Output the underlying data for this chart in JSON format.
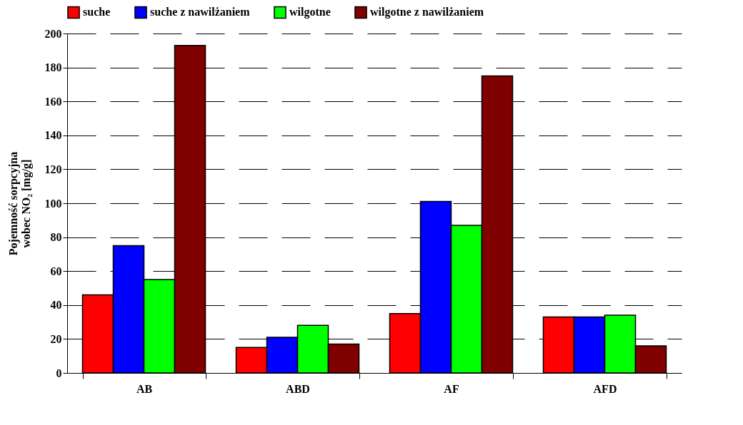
{
  "chart_data": {
    "type": "bar",
    "ylabel": "Pojemność sorpcyjna\nwobec NO₂ [mg/g]",
    "categories": [
      "AB",
      "ABD",
      "AF",
      "AFD"
    ],
    "series": [
      {
        "name": "suche",
        "color": "#ff0000",
        "values": [
          46,
          15,
          35,
          33
        ]
      },
      {
        "name": "suche z nawilżaniem",
        "color": "#0000ff",
        "values": [
          75,
          21,
          101,
          33
        ]
      },
      {
        "name": "wilgotne",
        "color": "#00ff00",
        "values": [
          55,
          28,
          87,
          34
        ]
      },
      {
        "name": "wilgotne z nawilżaniem",
        "color": "#800000",
        "values": [
          193,
          17,
          175,
          16
        ]
      }
    ],
    "ylim": [
      0,
      200
    ],
    "yticks": [
      0,
      20,
      40,
      60,
      80,
      100,
      120,
      140,
      160,
      180,
      200
    ],
    "grid": "y",
    "legend": "top"
  }
}
